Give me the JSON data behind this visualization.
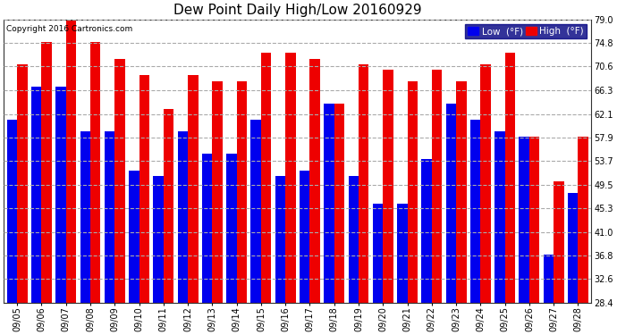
{
  "title": "Dew Point Daily High/Low 20160929",
  "copyright": "Copyright 2016 Cartronics.com",
  "legend_low": "Low  (°F)",
  "legend_high": "High  (°F)",
  "dates": [
    "09/05",
    "09/06",
    "09/07",
    "09/08",
    "09/09",
    "09/10",
    "09/11",
    "09/12",
    "09/13",
    "09/14",
    "09/15",
    "09/16",
    "09/17",
    "09/18",
    "09/19",
    "09/20",
    "09/21",
    "09/22",
    "09/23",
    "09/24",
    "09/25",
    "09/26",
    "09/27",
    "09/28"
  ],
  "low_values": [
    61.0,
    67.0,
    67.0,
    59.0,
    59.0,
    52.0,
    51.0,
    59.0,
    55.0,
    55.0,
    61.0,
    51.0,
    52.0,
    64.0,
    51.0,
    46.0,
    46.0,
    54.0,
    64.0,
    61.0,
    59.0,
    58.0,
    37.0,
    48.0
  ],
  "high_values": [
    71.0,
    75.0,
    79.0,
    75.0,
    72.0,
    69.0,
    63.0,
    69.0,
    68.0,
    68.0,
    73.0,
    73.0,
    72.0,
    64.0,
    71.0,
    70.0,
    68.0,
    70.0,
    68.0,
    71.0,
    73.0,
    58.0,
    50.0,
    58.0
  ],
  "ylim": [
    28.4,
    79.0
  ],
  "ybase": 28.4,
  "yticks": [
    28.4,
    32.6,
    36.8,
    41.0,
    45.3,
    49.5,
    53.7,
    57.9,
    62.1,
    66.3,
    70.6,
    74.8,
    79.0
  ],
  "bar_width": 0.42,
  "low_color": "#0000ee",
  "high_color": "#ee0000",
  "bg_color": "#ffffff",
  "plot_bg_color": "#ffffff",
  "grid_color": "#aaaaaa",
  "title_fontsize": 11,
  "copyright_fontsize": 6.5,
  "tick_fontsize": 7,
  "legend_fontsize": 7.5
}
